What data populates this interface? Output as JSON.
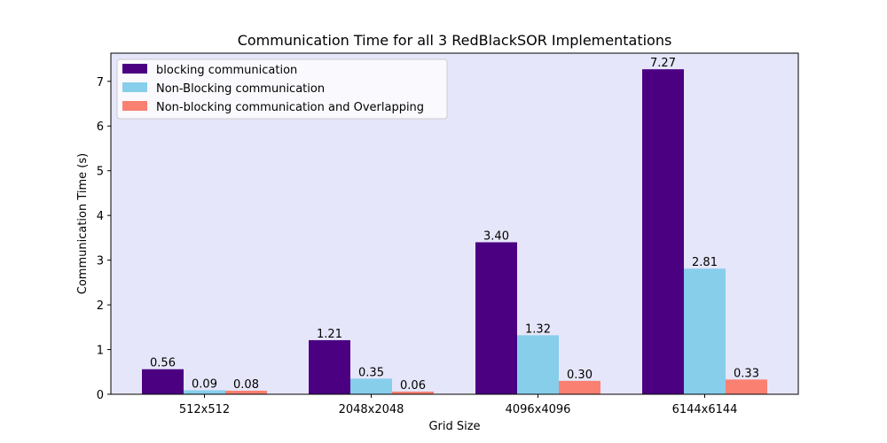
{
  "chart_data": {
    "type": "bar",
    "title": "Communication Time for all 3 RedBlackSOR Implementations",
    "xlabel": "Grid Size",
    "ylabel": "Communication Time (s)",
    "categories": [
      "512x512",
      "2048x2048",
      "4096x4096",
      "6144x6144"
    ],
    "series": [
      {
        "name": "blocking communication",
        "color": "#4b0082",
        "values": [
          0.56,
          1.21,
          3.4,
          7.27
        ],
        "labels": [
          "0.56",
          "1.21",
          "3.40",
          "7.27"
        ]
      },
      {
        "name": "Non-Blocking communication",
        "color": "#87ceeb",
        "values": [
          0.09,
          0.35,
          1.32,
          2.81
        ],
        "labels": [
          "0.09",
          "0.35",
          "1.32",
          "2.81"
        ]
      },
      {
        "name": "Non-blocking communication and Overlapping",
        "color": "#fa8072",
        "values": [
          0.08,
          0.06,
          0.3,
          0.33
        ],
        "labels": [
          "0.08",
          "0.06",
          "0.30",
          "0.33"
        ]
      }
    ],
    "yticks": [
      "0",
      "1",
      "2",
      "3",
      "4",
      "5",
      "6",
      "7"
    ],
    "ylim": [
      0,
      7.63
    ],
    "plot_background": "#e6e6fa",
    "legend_position": "top-left",
    "grid": false
  }
}
